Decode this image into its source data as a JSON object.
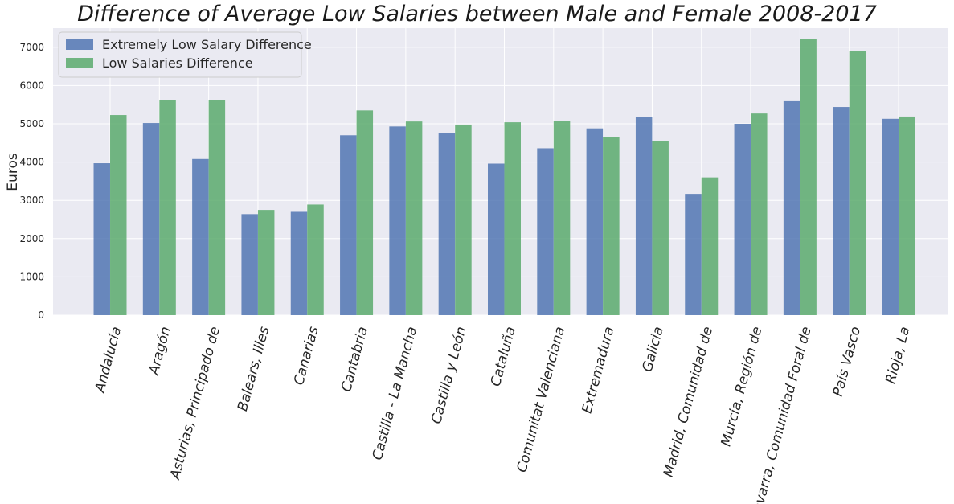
{
  "chart_data": {
    "type": "bar",
    "title": "Difference of Average Low Salaries between Male and Female 2008-2017",
    "xlabel": "",
    "ylabel": "Euros",
    "ylim": [
      0,
      7500
    ],
    "yticks": [
      0,
      1000,
      2000,
      3000,
      4000,
      5000,
      6000,
      7000
    ],
    "grid": true,
    "legend_position": "top-left",
    "categories": [
      "Andalucía",
      "Aragón",
      "Asturias, Principado de",
      "Balears, Illes",
      "Canarias",
      "Cantabria",
      "Castilla - La Mancha",
      "Castilla y León",
      "Cataluña",
      "Comunitat Valenciana",
      "Extremadura",
      "Galicia",
      "Madrid, Comunidad de",
      "Murcia, Región de",
      "Navarra, Comunidad Foral de",
      "País Vasco",
      "Rioja, La"
    ],
    "series": [
      {
        "name": "Extremely Low Salary Difference",
        "color": "#4c72b0",
        "values": [
          3970,
          5020,
          4080,
          2640,
          2700,
          4700,
          4930,
          4750,
          3960,
          4360,
          4880,
          5170,
          3170,
          5000,
          5590,
          5440,
          5130
        ]
      },
      {
        "name": "Low Salaries Difference",
        "color": "#55a868",
        "values": [
          5230,
          5610,
          5610,
          2750,
          2890,
          5350,
          5060,
          4980,
          5040,
          5080,
          4650,
          4550,
          3600,
          5270,
          7210,
          6910,
          5190
        ]
      }
    ]
  },
  "colors": {
    "plot_background": "#eaeaf2",
    "grid": "#ffffff"
  }
}
